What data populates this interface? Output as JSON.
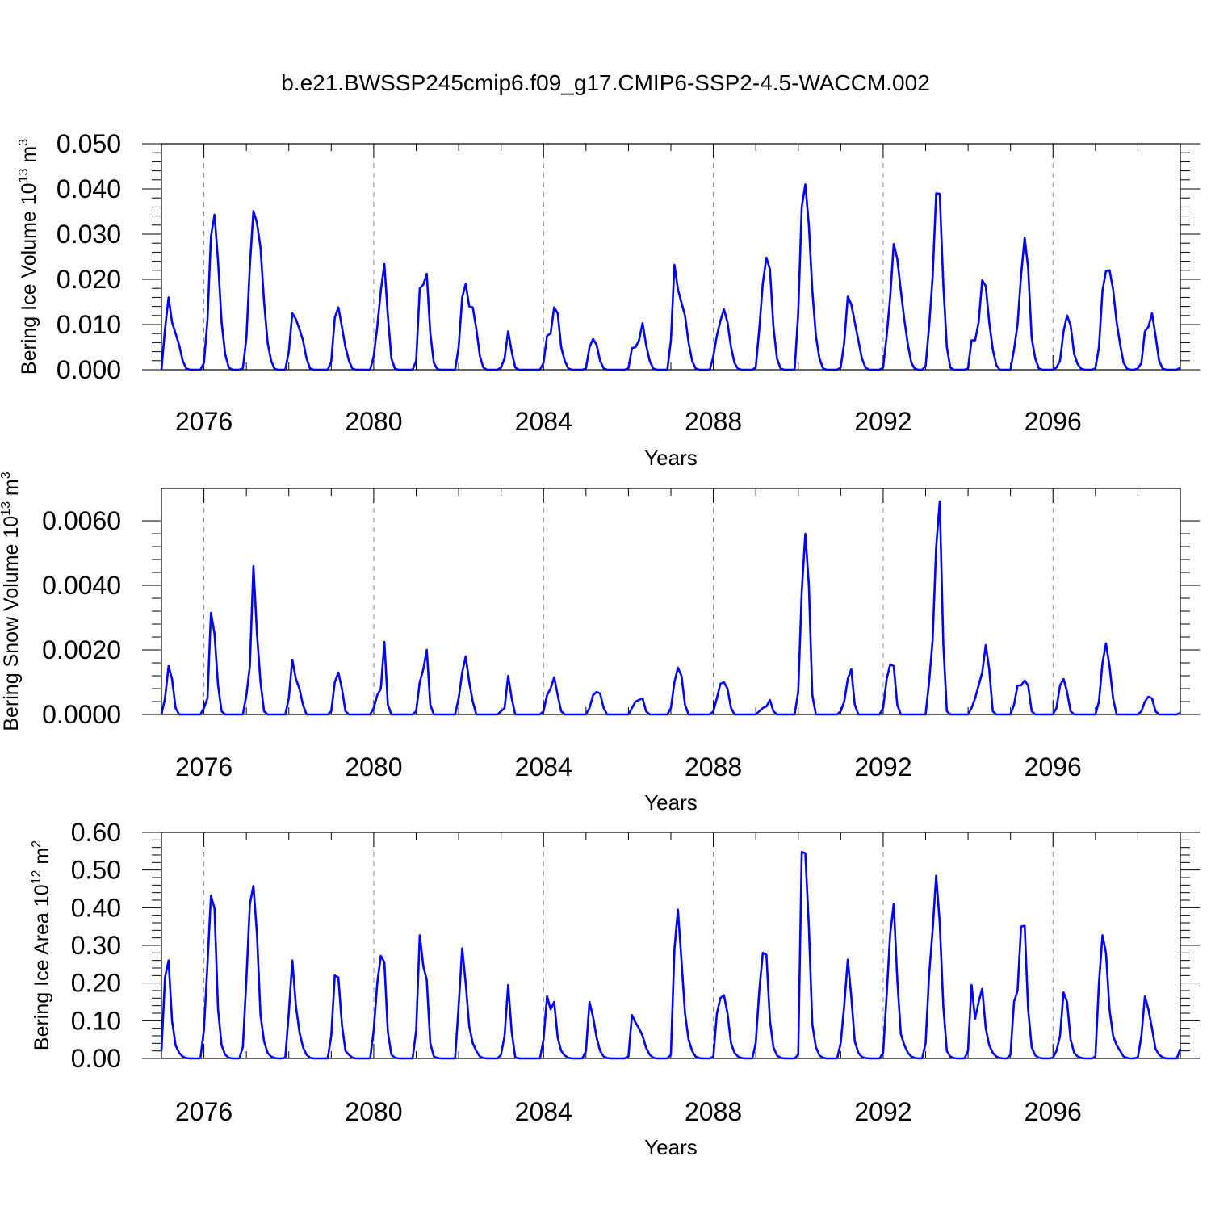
{
  "colors": {
    "series": "#0000ff",
    "frame": "#000000",
    "grid": "#888888"
  },
  "chart_data": [
    {
      "type": "line",
      "title": "b.e21.BWSSP245cmip6.f09_g17.CMIP6-SSP2-4.5-WACCM.002",
      "xlabel": "Years",
      "ylabel": {
        "text": "Bering Ice Volume 10",
        "sup": "13",
        "unit": " m",
        "unit_sup": "3"
      },
      "xlim": [
        2075,
        2099
      ],
      "ylim": [
        0,
        0.05
      ],
      "xticks": [
        2076,
        2080,
        2084,
        2088,
        2092,
        2096
      ],
      "xtick_labels": [
        "2076",
        "2080",
        "2084",
        "2088",
        "2092",
        "2096"
      ],
      "yticks": [
        0,
        0.01,
        0.02,
        0.03,
        0.04,
        0.05
      ],
      "ytick_labels": [
        "0.000",
        "0.010",
        "0.020",
        "0.030",
        "0.040",
        "0.050"
      ],
      "series": [
        {
          "name": "Bering Ice Volume",
          "start_year": 2075.0,
          "step": 0.08333,
          "values": [
            0.0,
            0.009,
            0.016,
            0.0105,
            0.008,
            0.0055,
            0.002,
            0.0003,
            0.0,
            0.0,
            0.0,
            0.0,
            0.0015,
            0.011,
            0.0295,
            0.0343,
            0.024,
            0.0105,
            0.0035,
            0.0005,
            0.0,
            0.0,
            0.0,
            0.0003,
            0.007,
            0.023,
            0.0351,
            0.0325,
            0.027,
            0.015,
            0.006,
            0.002,
            0.0002,
            0.0,
            0.0,
            0.0,
            0.004,
            0.0125,
            0.0112,
            0.009,
            0.0065,
            0.0025,
            0.0003,
            0.0,
            0.0,
            0.0,
            0.0,
            0.0,
            0.0018,
            0.0115,
            0.0138,
            0.0095,
            0.005,
            0.002,
            0.0002,
            0.0,
            0.0,
            0.0,
            0.0,
            0.0,
            0.003,
            0.0095,
            0.0175,
            0.0234,
            0.012,
            0.0025,
            0.0002,
            0.0,
            0.0,
            0.0,
            0.0,
            0.0,
            0.002,
            0.018,
            0.0188,
            0.0212,
            0.008,
            0.0015,
            0.0001,
            0.0,
            0.0,
            0.0,
            0.0,
            0.0,
            0.005,
            0.016,
            0.019,
            0.014,
            0.0138,
            0.009,
            0.003,
            0.0005,
            0.0,
            0.0,
            0.0,
            0.0,
            0.0005,
            0.0025,
            0.0085,
            0.004,
            0.0005,
            0.0,
            0.0,
            0.0,
            0.0,
            0.0,
            0.0,
            0.0,
            0.0015,
            0.0075,
            0.008,
            0.0138,
            0.0125,
            0.005,
            0.002,
            0.0003,
            0.0,
            0.0,
            0.0,
            0.0,
            0.0003,
            0.005,
            0.0068,
            0.0055,
            0.002,
            0.0003,
            0.0,
            0.0,
            0.0,
            0.0,
            0.0,
            0.0,
            0.0003,
            0.0048,
            0.005,
            0.0065,
            0.0103,
            0.0055,
            0.002,
            0.0003,
            0.0,
            0.0,
            0.0,
            0.0,
            0.0065,
            0.0232,
            0.0178,
            0.0148,
            0.012,
            0.006,
            0.002,
            0.0003,
            0.0,
            0.0,
            0.0,
            0.0,
            0.003,
            0.0075,
            0.0108,
            0.0134,
            0.0105,
            0.005,
            0.0015,
            0.0002,
            0.0,
            0.0,
            0.0,
            0.0,
            0.0005,
            0.009,
            0.0192,
            0.0248,
            0.0222,
            0.0095,
            0.0025,
            0.0003,
            0.0,
            0.0,
            0.0,
            0.0,
            0.0125,
            0.036,
            0.041,
            0.032,
            0.0175,
            0.0075,
            0.0025,
            0.0003,
            0.0,
            0.0,
            0.0,
            0.0,
            0.0005,
            0.006,
            0.0162,
            0.0145,
            0.0105,
            0.0065,
            0.0025,
            0.0005,
            0.0,
            0.0,
            0.0,
            0.0,
            0.0005,
            0.0075,
            0.016,
            0.0278,
            0.0245,
            0.0175,
            0.011,
            0.0055,
            0.0015,
            0.0002,
            0.0,
            0.0,
            0.0008,
            0.0095,
            0.0205,
            0.039,
            0.0389,
            0.0189,
            0.005,
            0.0005,
            0.0,
            0.0,
            0.0,
            0.0,
            0.0003,
            0.0065,
            0.0065,
            0.0105,
            0.0198,
            0.0185,
            0.0105,
            0.0045,
            0.001,
            0.0,
            0.0,
            0.0,
            0.0,
            0.0045,
            0.01,
            0.021,
            0.0292,
            0.0225,
            0.007,
            0.0025,
            0.0003,
            0.0,
            0.0,
            0.0,
            0.0,
            0.0005,
            0.002,
            0.0085,
            0.012,
            0.0098,
            0.0035,
            0.0012,
            0.0002,
            0.0,
            0.0,
            0.0,
            0.0003,
            0.005,
            0.0175,
            0.0218,
            0.022,
            0.0178,
            0.0105,
            0.0055,
            0.0015,
            0.0002,
            0.0,
            0.0,
            0.0003,
            0.0015,
            0.0085,
            0.0095,
            0.0125,
            0.0075,
            0.002,
            0.0003,
            0.0,
            0.0,
            0.0,
            0.0,
            0.0005
          ]
        }
      ]
    },
    {
      "type": "line",
      "xlabel": "Years",
      "ylabel": {
        "text": "Bering Snow Volume 10",
        "sup": "13",
        "unit": " m",
        "unit_sup": "3"
      },
      "xlim": [
        2075,
        2099
      ],
      "ylim": [
        0,
        0.007
      ],
      "xticks": [
        2076,
        2080,
        2084,
        2088,
        2092,
        2096
      ],
      "xtick_labels": [
        "2076",
        "2080",
        "2084",
        "2088",
        "2092",
        "2096"
      ],
      "yticks": [
        0,
        0.002,
        0.004,
        0.006
      ],
      "ytick_labels": [
        "0.0000",
        "0.0020",
        "0.0040",
        "0.0060"
      ],
      "series": [
        {
          "name": "Bering Snow Volume",
          "start_year": 2075.0,
          "step": 0.08333,
          "values": [
            0.0,
            0.0005,
            0.0015,
            0.0011,
            0.0002,
            0.0,
            0.0,
            0.0,
            0.0,
            0.0,
            0.0,
            0.0,
            0.0002,
            0.0005,
            0.00315,
            0.0025,
            0.0009,
            0.0001,
            0.0,
            0.0,
            0.0,
            0.0,
            0.0,
            0.0,
            0.0006,
            0.0015,
            0.0046,
            0.0025,
            0.001,
            0.0001,
            0.0,
            0.0,
            0.0,
            0.0,
            0.0,
            0.0,
            0.0005,
            0.0017,
            0.0011,
            0.0008,
            0.0003,
            0.0,
            0.0,
            0.0,
            0.0,
            0.0,
            0.0,
            0.0,
            0.0001,
            0.001,
            0.0013,
            0.0008,
            0.0001,
            0.0,
            0.0,
            0.0,
            0.0,
            0.0,
            0.0,
            0.0,
            0.0002,
            0.0006,
            0.0008,
            0.00225,
            0.0003,
            0.0,
            0.0,
            0.0,
            0.0,
            0.0,
            0.0,
            0.0,
            0.0001,
            0.001,
            0.0014,
            0.002,
            0.0003,
            0.0,
            0.0,
            0.0,
            0.0,
            0.0,
            0.0,
            0.0,
            0.0005,
            0.0013,
            0.0018,
            0.001,
            0.0004,
            0.0,
            0.0,
            0.0,
            0.0,
            0.0,
            0.0,
            0.0,
            0.0001,
            0.0002,
            0.0012,
            0.0005,
            0.0,
            0.0,
            0.0,
            0.0,
            0.0,
            0.0,
            0.0,
            0.0,
            0.0001,
            0.0006,
            0.0008,
            0.00115,
            0.0006,
            0.0001,
            0.0,
            0.0,
            0.0,
            0.0,
            0.0,
            0.0,
            0.0,
            0.0002,
            0.0006,
            0.0007,
            0.00065,
            0.0002,
            0.0,
            0.0,
            0.0,
            0.0,
            0.0,
            0.0,
            0.0,
            0.0002,
            0.0004,
            0.00045,
            0.0005,
            0.0001,
            0.0,
            0.0,
            0.0,
            0.0,
            0.0,
            0.0,
            0.0002,
            0.001,
            0.00145,
            0.0012,
            0.0003,
            0.0,
            0.0,
            0.0,
            0.0,
            0.0,
            0.0,
            0.0,
            0.0001,
            0.0005,
            0.00095,
            0.001,
            0.0008,
            0.0002,
            0.0,
            0.0,
            0.0,
            0.0,
            0.0,
            0.0,
            0.0,
            0.0001,
            0.0002,
            0.00025,
            0.00045,
            0.0001,
            0.0,
            0.0,
            0.0,
            0.0,
            0.0,
            0.0,
            0.0007,
            0.0038,
            0.0056,
            0.004,
            0.0006,
            0.0,
            0.0,
            0.0,
            0.0,
            0.0,
            0.0,
            0.0,
            0.0001,
            0.0004,
            0.0011,
            0.0014,
            0.0003,
            0.0,
            0.0,
            0.0,
            0.0,
            0.0,
            0.0,
            0.0,
            0.0002,
            0.0011,
            0.00155,
            0.0015,
            0.0003,
            0.0,
            0.0,
            0.0,
            0.0,
            0.0,
            0.0,
            0.0,
            0.0,
            0.001,
            0.0023,
            0.0052,
            0.0066,
            0.0022,
            0.0001,
            0.0,
            0.0,
            0.0,
            0.0,
            0.0,
            0.0,
            0.0002,
            0.0005,
            0.0009,
            0.0013,
            0.00215,
            0.0014,
            0.0001,
            0.0,
            0.0,
            0.0,
            0.0,
            0.0,
            0.0003,
            0.0009,
            0.0009,
            0.00105,
            0.0009,
            0.0001,
            0.0,
            0.0,
            0.0,
            0.0,
            0.0,
            0.0,
            0.0002,
            0.0009,
            0.0011,
            0.0007,
            0.0001,
            0.0,
            0.0,
            0.0,
            0.0,
            0.0,
            0.0,
            0.0,
            0.0004,
            0.0016,
            0.0022,
            0.0015,
            0.0005,
            0.0,
            0.0,
            0.0,
            0.0,
            0.0,
            0.0,
            0.0,
            0.0001,
            0.0004,
            0.00055,
            0.0005,
            0.0001,
            0.0,
            0.0,
            0.0,
            0.0,
            0.0,
            0.0,
            5e-05
          ]
        }
      ]
    },
    {
      "type": "line",
      "xlabel": "Years",
      "ylabel": {
        "text": "Bering Ice Area 10",
        "sup": "12",
        "unit": " m",
        "unit_sup": "2"
      },
      "xlim": [
        2075,
        2099
      ],
      "ylim": [
        0,
        0.6
      ],
      "xticks": [
        2076,
        2080,
        2084,
        2088,
        2092,
        2096
      ],
      "xtick_labels": [
        "2076",
        "2080",
        "2084",
        "2088",
        "2092",
        "2096"
      ],
      "yticks": [
        0,
        0.1,
        0.2,
        0.3,
        0.4,
        0.5,
        0.6
      ],
      "ytick_labels": [
        "0.00",
        "0.10",
        "0.20",
        "0.30",
        "0.40",
        "0.50",
        "0.60"
      ],
      "series": [
        {
          "name": "Bering Ice Area",
          "start_year": 2075.0,
          "step": 0.08333,
          "values": [
            0.02,
            0.215,
            0.26,
            0.1,
            0.035,
            0.015,
            0.005,
            0.001,
            0.0,
            0.0,
            0.0,
            0.0,
            0.075,
            0.25,
            0.432,
            0.398,
            0.13,
            0.035,
            0.01,
            0.002,
            0.0,
            0.0,
            0.0,
            0.03,
            0.21,
            0.41,
            0.458,
            0.33,
            0.115,
            0.045,
            0.015,
            0.005,
            0.001,
            0.0,
            0.0,
            0.002,
            0.12,
            0.26,
            0.14,
            0.07,
            0.03,
            0.01,
            0.002,
            0.0,
            0.0,
            0.0,
            0.0,
            0.0,
            0.06,
            0.22,
            0.215,
            0.09,
            0.02,
            0.01,
            0.002,
            0.0,
            0.0,
            0.0,
            0.0,
            0.0,
            0.075,
            0.2,
            0.272,
            0.255,
            0.07,
            0.01,
            0.002,
            0.0,
            0.0,
            0.0,
            0.0,
            0.0,
            0.075,
            0.327,
            0.245,
            0.208,
            0.04,
            0.005,
            0.001,
            0.0,
            0.0,
            0.0,
            0.0,
            0.0,
            0.14,
            0.292,
            0.2,
            0.085,
            0.04,
            0.02,
            0.005,
            0.001,
            0.0,
            0.0,
            0.0,
            0.0,
            0.01,
            0.06,
            0.195,
            0.07,
            0.003,
            0.0,
            0.0,
            0.0,
            0.0,
            0.0,
            0.0,
            0.0,
            0.05,
            0.165,
            0.13,
            0.15,
            0.055,
            0.02,
            0.008,
            0.002,
            0.0,
            0.0,
            0.0,
            0.0,
            0.02,
            0.15,
            0.11,
            0.055,
            0.02,
            0.005,
            0.001,
            0.0,
            0.0,
            0.0,
            0.0,
            0.0,
            0.005,
            0.115,
            0.095,
            0.08,
            0.06,
            0.028,
            0.01,
            0.002,
            0.0,
            0.0,
            0.0,
            0.0,
            0.01,
            0.29,
            0.395,
            0.26,
            0.12,
            0.05,
            0.02,
            0.005,
            0.001,
            0.0,
            0.0,
            0.0,
            0.005,
            0.118,
            0.16,
            0.168,
            0.12,
            0.04,
            0.015,
            0.005,
            0.001,
            0.0,
            0.0,
            0.0,
            0.04,
            0.18,
            0.28,
            0.275,
            0.1,
            0.03,
            0.008,
            0.002,
            0.0,
            0.0,
            0.0,
            0.0,
            0.01,
            0.548,
            0.545,
            0.35,
            0.09,
            0.03,
            0.008,
            0.002,
            0.0,
            0.0,
            0.0,
            0.0,
            0.04,
            0.14,
            0.262,
            0.165,
            0.045,
            0.015,
            0.004,
            0.001,
            0.0,
            0.0,
            0.0,
            0.0,
            0.015,
            0.17,
            0.33,
            0.41,
            0.21,
            0.065,
            0.035,
            0.015,
            0.005,
            0.001,
            0.0,
            0.0,
            0.04,
            0.22,
            0.34,
            0.485,
            0.36,
            0.14,
            0.02,
            0.005,
            0.001,
            0.0,
            0.0,
            0.0,
            0.02,
            0.195,
            0.105,
            0.15,
            0.185,
            0.08,
            0.035,
            0.015,
            0.005,
            0.001,
            0.0,
            0.0,
            0.01,
            0.15,
            0.18,
            0.35,
            0.352,
            0.13,
            0.03,
            0.008,
            0.002,
            0.0,
            0.0,
            0.0,
            0.002,
            0.02,
            0.06,
            0.175,
            0.15,
            0.05,
            0.015,
            0.005,
            0.001,
            0.0,
            0.0,
            0.0,
            0.005,
            0.2,
            0.327,
            0.28,
            0.13,
            0.06,
            0.035,
            0.02,
            0.005,
            0.001,
            0.0,
            0.0,
            0.003,
            0.06,
            0.165,
            0.13,
            0.08,
            0.025,
            0.01,
            0.003,
            0.0,
            0.0,
            0.0,
            0.0,
            0.025
          ]
        }
      ]
    }
  ]
}
